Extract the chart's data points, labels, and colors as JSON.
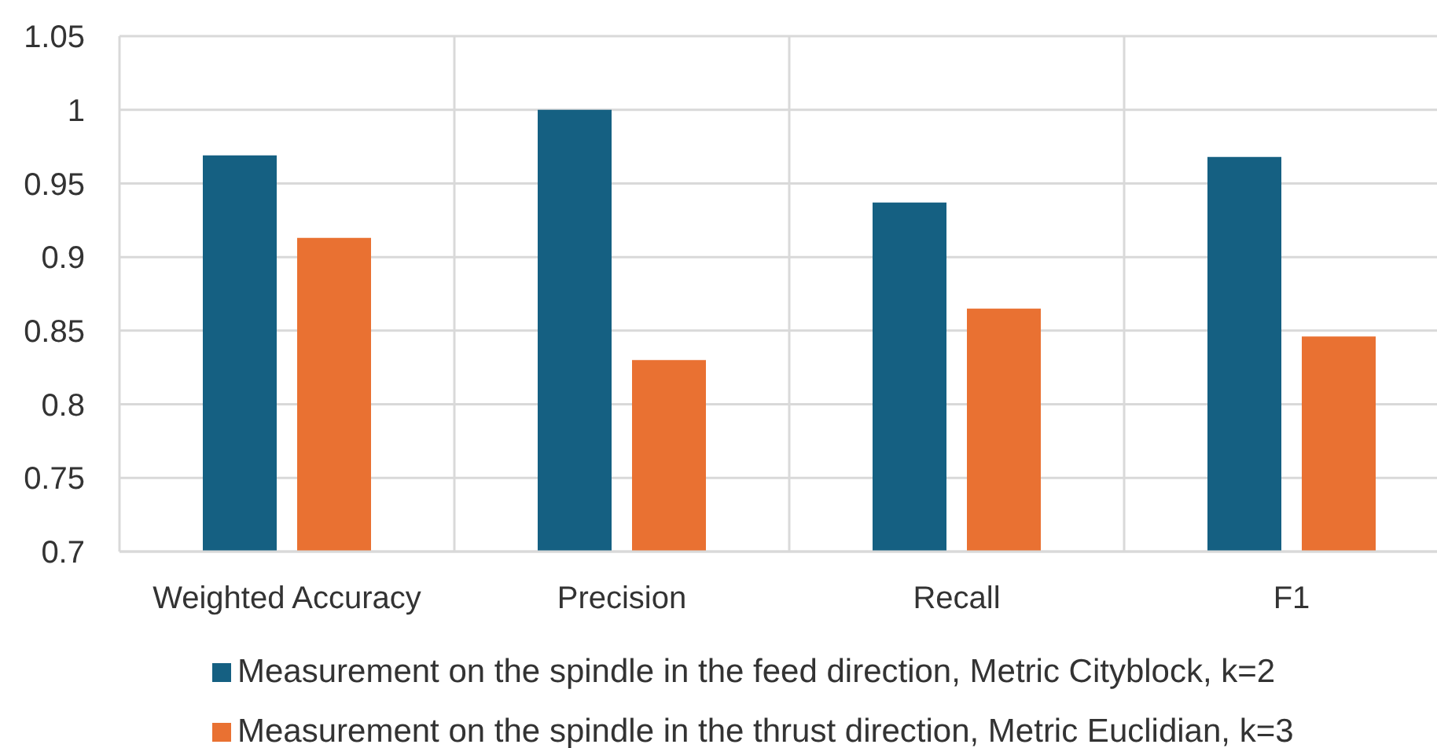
{
  "chart_data": {
    "type": "bar",
    "categories": [
      "Weighted Accuracy",
      "Precision",
      "Recall",
      "F1"
    ],
    "series": [
      {
        "name": "Measurement on the spindle in the feed direction, Metric Cityblock, k=2",
        "color": "#156082",
        "values": [
          0.969,
          1.0,
          0.937,
          0.968
        ]
      },
      {
        "name": "Measurement on the spindle in the thrust direction, Metric Euclidian, k=3",
        "color": "#e97132",
        "values": [
          0.913,
          0.83,
          0.865,
          0.846
        ]
      }
    ],
    "ylim": [
      0.7,
      1.05
    ],
    "yticks": [
      0.7,
      0.75,
      0.8,
      0.85,
      0.9,
      0.95,
      1,
      1.05
    ],
    "grid": true,
    "legend": "bottom"
  }
}
